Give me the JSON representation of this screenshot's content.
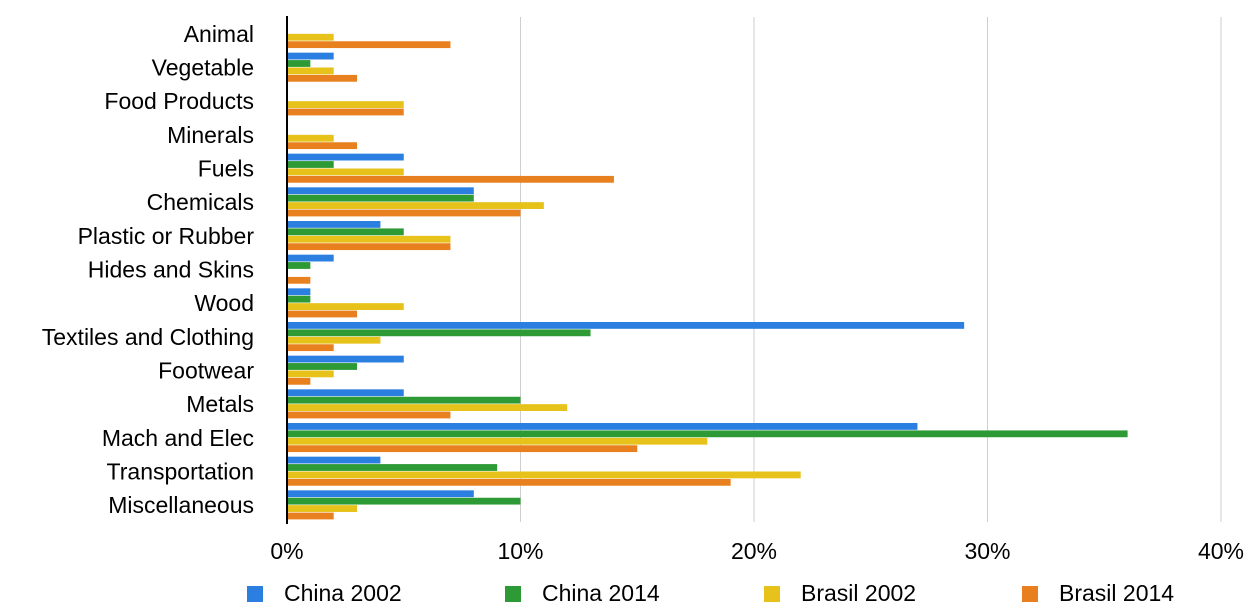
{
  "chart_data": {
    "type": "bar",
    "orientation": "horizontal",
    "categories": [
      "Animal",
      "Vegetable",
      "Food Products",
      "Minerals",
      "Fuels",
      "Chemicals",
      "Plastic or Rubber",
      "Hides and Skins",
      "Wood",
      "Textiles and Clothing",
      "Footwear",
      "Metals",
      "Mach and Elec",
      "Transportation",
      "Miscellaneous"
    ],
    "series": [
      {
        "name": "China 2002",
        "color": "#2b7fe0",
        "values": [
          0,
          2,
          0,
          0,
          5,
          8,
          4,
          2,
          1,
          29,
          5,
          5,
          27,
          4,
          8
        ]
      },
      {
        "name": "China 2014",
        "color": "#2e9a36",
        "values": [
          0,
          1,
          0,
          0,
          2,
          8,
          5,
          1,
          1,
          13,
          3,
          10,
          36,
          9,
          10
        ]
      },
      {
        "name": "Brasil 2002",
        "color": "#e6c21b",
        "values": [
          2,
          2,
          5,
          2,
          5,
          11,
          7,
          0,
          5,
          4,
          2,
          12,
          18,
          22,
          3
        ]
      },
      {
        "name": "Brasil 2014",
        "color": "#e8801f",
        "values": [
          7,
          3,
          5,
          3,
          14,
          10,
          7,
          1,
          3,
          2,
          1,
          7,
          15,
          19,
          2
        ]
      }
    ],
    "x_ticks": [
      "0%",
      "10%",
      "20%",
      "30%",
      "40%"
    ],
    "xlim": [
      0,
      40
    ],
    "grid": true,
    "legend_position": "bottom",
    "title": "",
    "xlabel": "",
    "ylabel": ""
  }
}
